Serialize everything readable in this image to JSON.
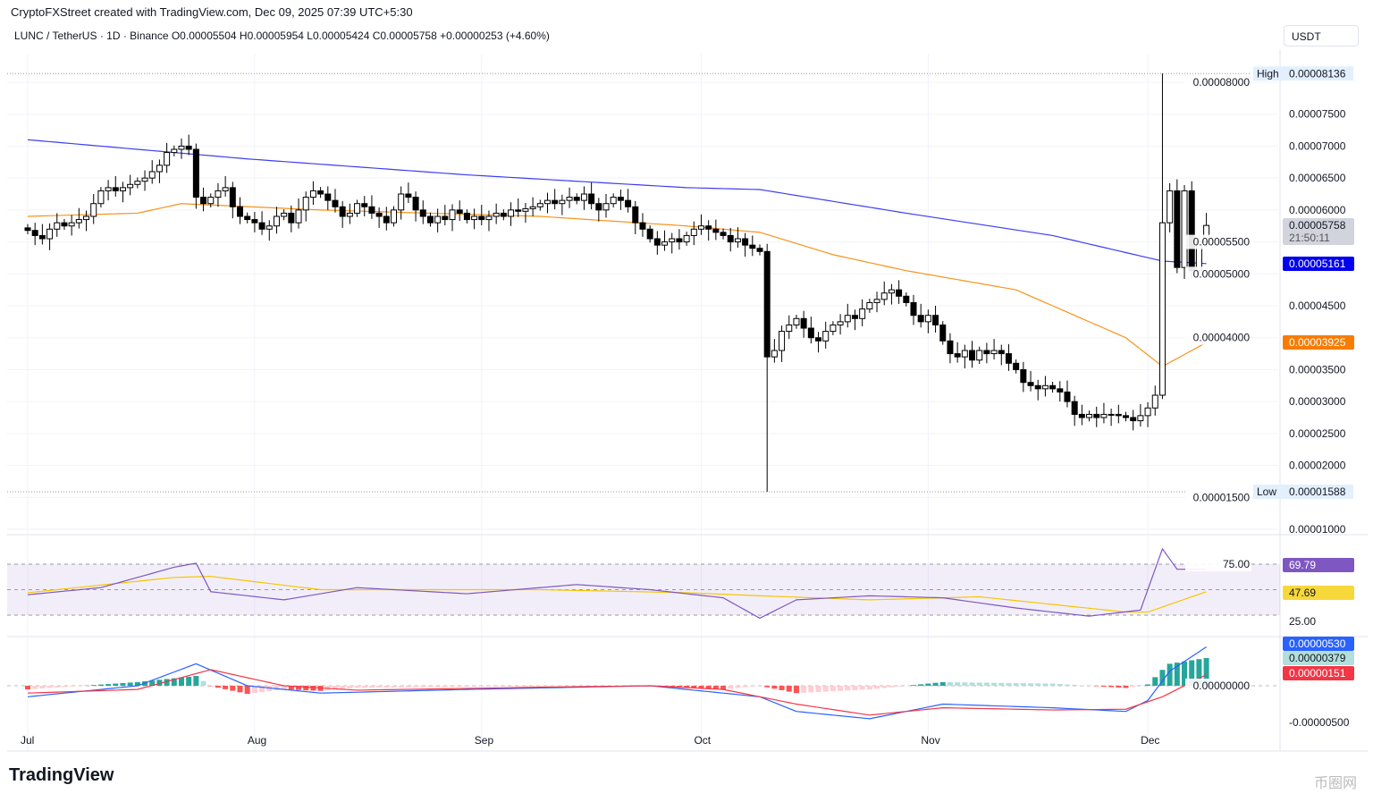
{
  "header": {
    "credit": "CryptoFXStreet created with TradingView.com, Dec 09, 2025 07:39 UTC+5:30",
    "legend": "LUNC / TetherUS · 1D · Binance  O0.00005504  H0.00005954  L0.00005424  C0.00005758  +0.00000253 (+4.60%)",
    "currency": "USDT"
  },
  "footer": {
    "logo": "TradingView",
    "watermark": "币圈网"
  },
  "chart_data": {
    "type": "candlestick",
    "unit": "1e-8 USDT",
    "start": "2025-07-01",
    "closes": [
      5680,
      5600,
      5550,
      5700,
      5800,
      5750,
      5800,
      5850,
      5900,
      6100,
      6300,
      6350,
      6300,
      6350,
      6400,
      6450,
      6500,
      6600,
      6700,
      6900,
      6950,
      7000,
      6950,
      6200,
      6100,
      6200,
      6300,
      6350,
      6050,
      5900,
      5850,
      5800,
      5700,
      5750,
      5900,
      5950,
      5800,
      6000,
      6200,
      6300,
      6250,
      6150,
      6050,
      5900,
      5950,
      6100,
      6050,
      5950,
      5900,
      5800,
      6000,
      6250,
      6200,
      6000,
      5900,
      5800,
      5900,
      5850,
      6000,
      5950,
      5850,
      5900,
      5850,
      5900,
      5950,
      5900,
      6000,
      5980,
      6020,
      6050,
      6100,
      6150,
      6100,
      6150,
      6200,
      6150,
      6250,
      6100,
      6000,
      6100,
      6200,
      6150,
      6050,
      5800,
      5700,
      5550,
      5450,
      5500,
      5550,
      5500,
      5600,
      5700,
      5750,
      5700,
      5650,
      5600,
      5500,
      5550,
      5450,
      5400,
      5350,
      3700,
      3800,
      4100,
      4200,
      4300,
      4150,
      4000,
      3950,
      4100,
      4200,
      4250,
      4350,
      4300,
      4450,
      4550,
      4600,
      4700,
      4750,
      4650,
      4550,
      4350,
      4250,
      4350,
      4200,
      3950,
      3750,
      3700,
      3800,
      3650,
      3800,
      3750,
      3800,
      3750,
      3600,
      3500,
      3300,
      3250,
      3200,
      3250,
      3200,
      3150,
      3000,
      2800,
      2750,
      2800,
      2750,
      2800,
      2800,
      2780,
      2750,
      2700,
      2780,
      2900,
      3100,
      5800,
      6300,
      5100,
      6300,
      5050,
      5505,
      5758
    ],
    "last": {
      "open": 5504,
      "high": 5954,
      "low": 5424,
      "close": 5758
    },
    "high": {
      "label": "High",
      "value": "0.00008136",
      "day": 155,
      "v": 8136
    },
    "low": {
      "label": "Low",
      "value": "0.00001588",
      "day": 101,
      "v": 1588
    },
    "ma_long": {
      "color": "#3d3df0",
      "label": "0.00005161",
      "points": [
        [
          0,
          7100
        ],
        [
          30,
          6800
        ],
        [
          60,
          6550
        ],
        [
          90,
          6350
        ],
        [
          100,
          6320
        ],
        [
          120,
          5950
        ],
        [
          140,
          5600
        ],
        [
          155,
          5200
        ],
        [
          161,
          5161
        ]
      ]
    },
    "ma_short": {
      "color": "#f7931a",
      "label": "0.00003925",
      "points": [
        [
          0,
          5900
        ],
        [
          15,
          5950
        ],
        [
          21,
          6100
        ],
        [
          40,
          6000
        ],
        [
          70,
          5900
        ],
        [
          90,
          5750
        ],
        [
          100,
          5650
        ],
        [
          110,
          5300
        ],
        [
          120,
          5050
        ],
        [
          135,
          4750
        ],
        [
          150,
          4000
        ],
        [
          155,
          3550
        ],
        [
          161,
          3925
        ]
      ]
    },
    "current": {
      "price": "0.00005758",
      "countdown": "21:50:11"
    },
    "y_ticks": [
      "0.00008000",
      "0.00007500",
      "0.00007000",
      "0.00006500",
      "0.00006000",
      "0.00005500",
      "0.00005000",
      "0.00004500",
      "0.00004000",
      "0.00003500",
      "0.00003000",
      "0.00002500",
      "0.00002000",
      "0.00001500",
      "0.00001000"
    ],
    "x_ticks": [
      {
        "label": "Jul",
        "day": 0
      },
      {
        "label": "Aug",
        "day": 31
      },
      {
        "label": "Sep",
        "day": 62
      },
      {
        "label": "Oct",
        "day": 92
      },
      {
        "label": "Nov",
        "day": 123
      },
      {
        "label": "Dec",
        "day": 153
      }
    ],
    "rsi": {
      "levels": [
        "75.00",
        "25.00"
      ],
      "value": "69.79",
      "ma_value": "47.69",
      "points": [
        [
          0,
          45
        ],
        [
          10,
          52
        ],
        [
          20,
          72
        ],
        [
          23,
          76
        ],
        [
          25,
          48
        ],
        [
          35,
          40
        ],
        [
          45,
          52
        ],
        [
          60,
          46
        ],
        [
          75,
          55
        ],
        [
          85,
          50
        ],
        [
          95,
          42
        ],
        [
          100,
          22
        ],
        [
          105,
          40
        ],
        [
          115,
          44
        ],
        [
          125,
          42
        ],
        [
          135,
          32
        ],
        [
          145,
          24
        ],
        [
          152,
          30
        ],
        [
          155,
          90
        ],
        [
          157,
          70
        ],
        [
          161,
          70
        ]
      ],
      "ma": [
        [
          0,
          47
        ],
        [
          20,
          62
        ],
        [
          25,
          63
        ],
        [
          40,
          50
        ],
        [
          70,
          50
        ],
        [
          90,
          47
        ],
        [
          100,
          44
        ],
        [
          115,
          40
        ],
        [
          130,
          43
        ],
        [
          150,
          28
        ],
        [
          153,
          28
        ],
        [
          161,
          48
        ]
      ]
    },
    "macd": {
      "macd_value": "0.00000530",
      "hist_value": "0.00000379",
      "signal_value": "0.00000151",
      "zero": "0.00000000",
      "neg": "-0.00000500",
      "macd": [
        [
          0,
          -150
        ],
        [
          15,
          0
        ],
        [
          23,
          300
        ],
        [
          30,
          0
        ],
        [
          40,
          -100
        ],
        [
          60,
          -50
        ],
        [
          85,
          0
        ],
        [
          95,
          -100
        ],
        [
          100,
          -150
        ],
        [
          105,
          -350
        ],
        [
          115,
          -450
        ],
        [
          125,
          -250
        ],
        [
          140,
          -300
        ],
        [
          150,
          -350
        ],
        [
          153,
          -200
        ],
        [
          156,
          200
        ],
        [
          161,
          530
        ]
      ],
      "signal": [
        [
          0,
          -100
        ],
        [
          15,
          -50
        ],
        [
          25,
          220
        ],
        [
          35,
          0
        ],
        [
          45,
          -60
        ],
        [
          70,
          -20
        ],
        [
          85,
          0
        ],
        [
          95,
          -50
        ],
        [
          105,
          -250
        ],
        [
          115,
          -400
        ],
        [
          125,
          -300
        ],
        [
          140,
          -330
        ],
        [
          150,
          -320
        ],
        [
          155,
          -150
        ],
        [
          161,
          151
        ]
      ]
    }
  }
}
